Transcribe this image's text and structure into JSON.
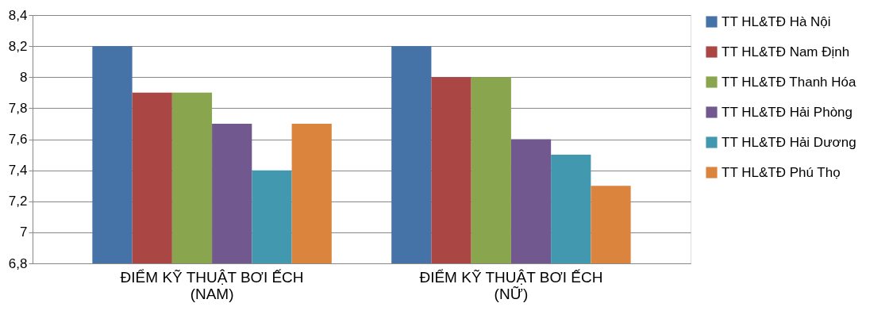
{
  "chart_data": {
    "type": "bar",
    "categories": [
      "ĐIỂM KỸ THUẬT  BƠI ẾCH (NAM)",
      "ĐIỂM KỸ THUẬT  BƠI ẾCH (NỮ)"
    ],
    "series": [
      {
        "name": "TT HL&TĐ Hà Nội",
        "color": "#4572a7",
        "values": [
          8.2,
          8.2
        ]
      },
      {
        "name": "TT HL&TĐ Nam Định",
        "color": "#aa4643",
        "values": [
          7.9,
          8.0
        ]
      },
      {
        "name": "TT HL&TĐ Thanh Hóa",
        "color": "#89a54e",
        "values": [
          7.9,
          8.0
        ]
      },
      {
        "name": "TT HL&TĐ Hải Phòng",
        "color": "#71588f",
        "values": [
          7.7,
          7.6
        ]
      },
      {
        "name": "TT HL&TĐ Hải Dương",
        "color": "#4198af",
        "values": [
          7.4,
          7.5
        ]
      },
      {
        "name": "TT HL&TĐ Phú Thọ",
        "color": "#db843d",
        "values": [
          7.7,
          7.3
        ]
      }
    ],
    "ylim": [
      6.8,
      8.4
    ],
    "yticks": [
      {
        "value": 6.8,
        "label": "6,8"
      },
      7,
      {
        "value": 7.2,
        "label": "7,2"
      },
      {
        "value": 7.4,
        "label": "7,4"
      },
      {
        "value": 7.6,
        "label": "7,6"
      },
      {
        "value": 7.8,
        "label": "7,8"
      },
      8,
      {
        "value": 8.2,
        "label": "8,2"
      },
      {
        "value": 8.4,
        "label": "8,4"
      }
    ],
    "grid": "y",
    "legend": "right"
  }
}
